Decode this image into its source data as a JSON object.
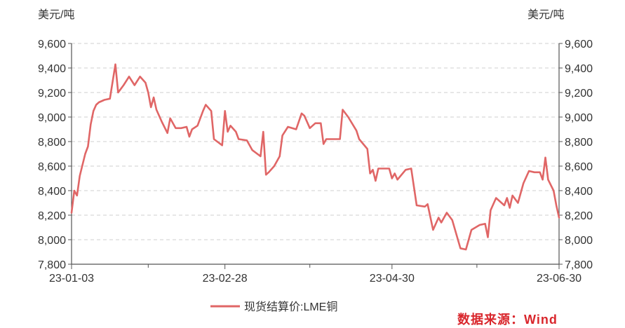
{
  "chart_data": {
    "type": "line",
    "title": "",
    "y_unit_left": "美元/吨",
    "y_unit_right": "美元/吨",
    "ylim": [
      7800,
      9600
    ],
    "y_ticks": [
      "7,800",
      "8,000",
      "8,200",
      "8,400",
      "8,600",
      "8,800",
      "9,000",
      "9,200",
      "9,400",
      "9,600"
    ],
    "y_tick_values": [
      7800,
      8000,
      8200,
      8400,
      8600,
      8800,
      9000,
      9200,
      9400,
      9600
    ],
    "x_tick_labels": [
      "23-01-03",
      "23-02-28",
      "23-04-30",
      "23-06-30"
    ],
    "x_range": [
      "2023-01-03",
      "2023-06-30"
    ],
    "grid": true,
    "legend_placement": "bottom",
    "color": "#e06666",
    "series": [
      {
        "name": "现货结算价:LME铜",
        "points": [
          [
            "2023-01-03",
            8220
          ],
          [
            "2023-01-04",
            8400
          ],
          [
            "2023-01-05",
            8360
          ],
          [
            "2023-01-06",
            8520
          ],
          [
            "2023-01-08",
            8700
          ],
          [
            "2023-01-09",
            8760
          ],
          [
            "2023-01-10",
            8940
          ],
          [
            "2023-01-11",
            9050
          ],
          [
            "2023-01-12",
            9100
          ],
          [
            "2023-01-13",
            9120
          ],
          [
            "2023-01-15",
            9140
          ],
          [
            "2023-01-17",
            9150
          ],
          [
            "2023-01-19",
            9430
          ],
          [
            "2023-01-20",
            9200
          ],
          [
            "2023-01-22",
            9260
          ],
          [
            "2023-01-24",
            9330
          ],
          [
            "2023-01-26",
            9260
          ],
          [
            "2023-01-28",
            9330
          ],
          [
            "2023-01-30",
            9280
          ],
          [
            "2023-01-31",
            9200
          ],
          [
            "2023-02-01",
            9080
          ],
          [
            "2023-02-02",
            9160
          ],
          [
            "2023-02-03",
            9060
          ],
          [
            "2023-02-05",
            8960
          ],
          [
            "2023-02-07",
            8870
          ],
          [
            "2023-02-08",
            8990
          ],
          [
            "2023-02-10",
            8910
          ],
          [
            "2023-02-12",
            8910
          ],
          [
            "2023-02-14",
            8920
          ],
          [
            "2023-02-15",
            8840
          ],
          [
            "2023-02-16",
            8900
          ],
          [
            "2023-02-18",
            8930
          ],
          [
            "2023-02-20",
            9050
          ],
          [
            "2023-02-21",
            9100
          ],
          [
            "2023-02-23",
            9050
          ],
          [
            "2023-02-24",
            8820
          ],
          [
            "2023-02-27",
            8770
          ],
          [
            "2023-02-28",
            9050
          ],
          [
            "2023-03-01",
            8880
          ],
          [
            "2023-03-02",
            8930
          ],
          [
            "2023-03-04",
            8880
          ],
          [
            "2023-03-05",
            8820
          ],
          [
            "2023-03-08",
            8810
          ],
          [
            "2023-03-10",
            8730
          ],
          [
            "2023-03-13",
            8680
          ],
          [
            "2023-03-14",
            8880
          ],
          [
            "2023-03-15",
            8530
          ],
          [
            "2023-03-16",
            8550
          ],
          [
            "2023-03-18",
            8600
          ],
          [
            "2023-03-20",
            8680
          ],
          [
            "2023-03-21",
            8850
          ],
          [
            "2023-03-23",
            8920
          ],
          [
            "2023-03-26",
            8900
          ],
          [
            "2023-03-28",
            9030
          ],
          [
            "2023-03-29",
            9010
          ],
          [
            "2023-03-31",
            8910
          ],
          [
            "2023-04-02",
            8950
          ],
          [
            "2023-04-04",
            8950
          ],
          [
            "2023-04-05",
            8780
          ],
          [
            "2023-04-06",
            8820
          ],
          [
            "2023-04-10",
            8820
          ],
          [
            "2023-04-11",
            8820
          ],
          [
            "2023-04-12",
            9060
          ],
          [
            "2023-04-14",
            9000
          ],
          [
            "2023-04-17",
            8890
          ],
          [
            "2023-04-18",
            8820
          ],
          [
            "2023-04-21",
            8740
          ],
          [
            "2023-04-22",
            8540
          ],
          [
            "2023-04-23",
            8570
          ],
          [
            "2023-04-24",
            8480
          ],
          [
            "2023-04-25",
            8580
          ],
          [
            "2023-04-29",
            8580
          ],
          [
            "2023-04-30",
            8500
          ],
          [
            "2023-05-01",
            8540
          ],
          [
            "2023-05-02",
            8490
          ],
          [
            "2023-05-05",
            8570
          ],
          [
            "2023-05-07",
            8580
          ],
          [
            "2023-05-09",
            8280
          ],
          [
            "2023-05-12",
            8270
          ],
          [
            "2023-05-13",
            8290
          ],
          [
            "2023-05-15",
            8080
          ],
          [
            "2023-05-17",
            8180
          ],
          [
            "2023-05-18",
            8140
          ],
          [
            "2023-05-20",
            8220
          ],
          [
            "2023-05-22",
            8160
          ],
          [
            "2023-05-25",
            7930
          ],
          [
            "2023-05-27",
            7920
          ],
          [
            "2023-05-29",
            8080
          ],
          [
            "2023-06-01",
            8120
          ],
          [
            "2023-06-03",
            8130
          ],
          [
            "2023-06-04",
            8020
          ],
          [
            "2023-06-05",
            8240
          ],
          [
            "2023-06-07",
            8340
          ],
          [
            "2023-06-10",
            8280
          ],
          [
            "2023-06-11",
            8340
          ],
          [
            "2023-06-12",
            8260
          ],
          [
            "2023-06-13",
            8360
          ],
          [
            "2023-06-15",
            8300
          ],
          [
            "2023-06-17",
            8460
          ],
          [
            "2023-06-19",
            8560
          ],
          [
            "2023-06-21",
            8550
          ],
          [
            "2023-06-23",
            8550
          ],
          [
            "2023-06-24",
            8490
          ],
          [
            "2023-06-25",
            8670
          ],
          [
            "2023-06-26",
            8490
          ],
          [
            "2023-06-28",
            8400
          ],
          [
            "2023-06-29",
            8280
          ],
          [
            "2023-06-30",
            8180
          ]
        ]
      }
    ],
    "source": "数据来源：Wind"
  }
}
